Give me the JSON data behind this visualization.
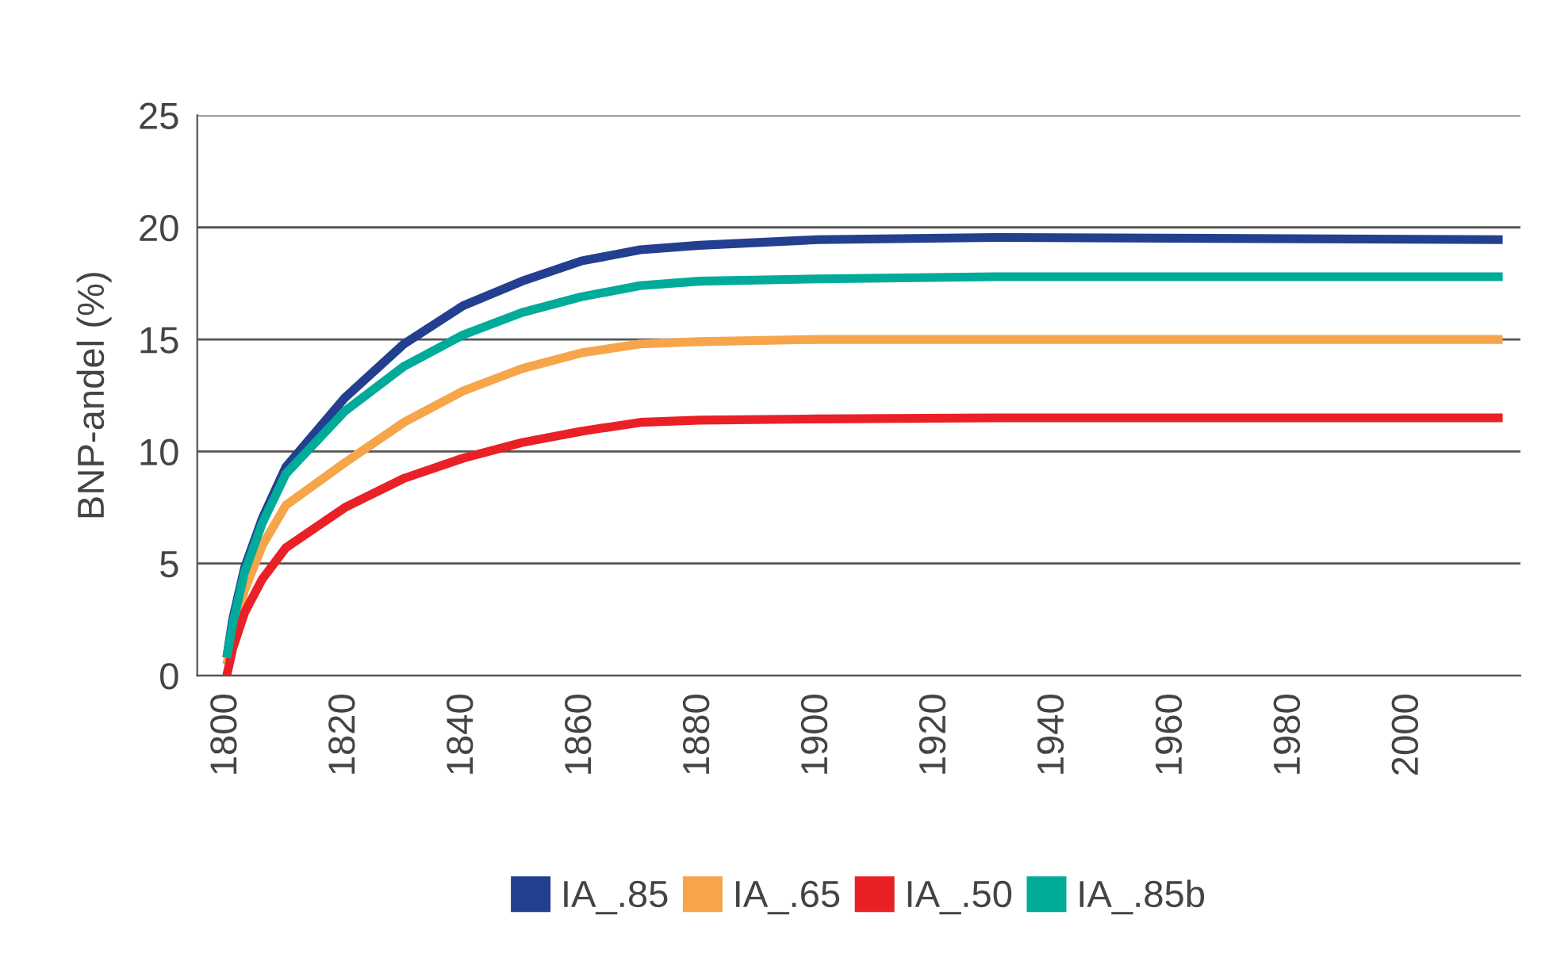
{
  "chart_data": {
    "type": "line",
    "ylabel": "BNP-andel (%)",
    "x": [
      1800,
      1801,
      1803,
      1806,
      1810,
      1820,
      1830,
      1840,
      1850,
      1860,
      1870,
      1880,
      1900,
      1930,
      2016
    ],
    "series": [
      {
        "name": "IA_.85",
        "color": "#233f8f",
        "values": [
          0.8,
          2.5,
          4.8,
          7.0,
          9.3,
          12.4,
          14.8,
          16.5,
          17.6,
          18.5,
          19.0,
          19.2,
          19.45,
          19.55,
          19.45
        ]
      },
      {
        "name": "IA_.65",
        "color": "#f7a54a",
        "values": [
          0.5,
          1.8,
          3.8,
          5.8,
          7.6,
          9.5,
          11.3,
          12.7,
          13.7,
          14.4,
          14.8,
          14.9,
          15.0,
          15.0,
          15.0
        ]
      },
      {
        "name": "IA_.50",
        "color": "#ea2027",
        "values": [
          0,
          1.2,
          2.8,
          4.3,
          5.7,
          7.5,
          8.8,
          9.7,
          10.4,
          10.9,
          11.3,
          11.4,
          11.45,
          11.5,
          11.5
        ]
      },
      {
        "name": "IA_.85b",
        "color": "#00ab9a",
        "values": [
          0.8,
          2.3,
          4.6,
          6.8,
          9.0,
          11.8,
          13.8,
          15.2,
          16.2,
          16.9,
          17.4,
          17.6,
          17.7,
          17.8,
          17.8
        ]
      }
    ],
    "xlim": [
      1795,
      2019
    ],
    "ylim": [
      0,
      25
    ],
    "xticks": [
      1800,
      1820,
      1840,
      1860,
      1880,
      1900,
      1920,
      1940,
      1960,
      1980,
      2000
    ],
    "yticks": [
      0,
      5,
      10,
      15,
      20,
      25
    ],
    "grid": "y",
    "legend": "bottom",
    "marker": "none",
    "line_style": "solid"
  }
}
